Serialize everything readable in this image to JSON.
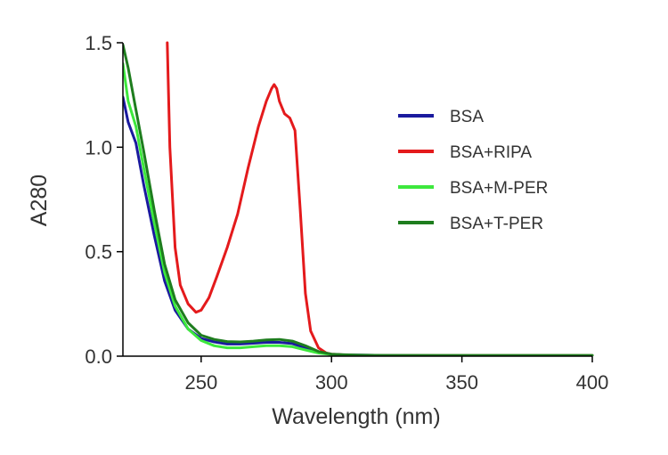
{
  "chart_data": {
    "type": "line",
    "xlabel": "Wavelength (nm)",
    "ylabel": "A280",
    "xlim": [
      220,
      400
    ],
    "ylim": [
      0,
      1.5
    ],
    "x_ticks": [
      250,
      300,
      350,
      400
    ],
    "x_tick_labels": [
      "250",
      "300",
      "350",
      "400"
    ],
    "y_ticks": [
      0,
      0.5,
      1.0,
      1.5
    ],
    "y_tick_labels": [
      "0.0",
      "0.5",
      "1.0",
      "1.5"
    ],
    "grid": false,
    "legend_position": "right",
    "series": [
      {
        "name": "BSA",
        "color": "#1a1a9e",
        "x": [
          220,
          222,
          225,
          228,
          232,
          236,
          240,
          245,
          250,
          255,
          260,
          265,
          270,
          275,
          280,
          285,
          290,
          295,
          300,
          305,
          310,
          320,
          340,
          360,
          380,
          400
        ],
        "y": [
          1.24,
          1.12,
          1.02,
          0.82,
          0.58,
          0.36,
          0.22,
          0.13,
          0.085,
          0.068,
          0.058,
          0.058,
          0.062,
          0.066,
          0.066,
          0.06,
          0.04,
          0.018,
          0.008,
          0.006,
          0.005,
          0.004,
          0.003,
          0.003,
          0.003,
          0.003
        ]
      },
      {
        "name": "BSA+RIPA",
        "color": "#e41a1c",
        "x": [
          237,
          238,
          240,
          242,
          245,
          248,
          250,
          253,
          256,
          260,
          264,
          268,
          272,
          275,
          277,
          278,
          279,
          280,
          282,
          284,
          286,
          288,
          290,
          292,
          295,
          298,
          300,
          305,
          310,
          320,
          340,
          360,
          380,
          400
        ],
        "y": [
          1.5,
          1.0,
          0.52,
          0.34,
          0.25,
          0.21,
          0.22,
          0.28,
          0.38,
          0.52,
          0.68,
          0.9,
          1.1,
          1.22,
          1.28,
          1.3,
          1.28,
          1.22,
          1.16,
          1.14,
          1.08,
          0.7,
          0.3,
          0.12,
          0.04,
          0.015,
          0.01,
          0.006,
          0.004,
          0.003,
          0.003,
          0.003,
          0.003,
          0.003
        ]
      },
      {
        "name": "BSA+M-PER",
        "color": "#3de83d",
        "x": [
          220,
          222,
          225,
          228,
          232,
          236,
          240,
          245,
          250,
          255,
          260,
          265,
          270,
          275,
          280,
          285,
          290,
          295,
          300,
          305,
          310,
          320,
          340,
          360,
          380,
          400
        ],
        "y": [
          1.4,
          1.22,
          1.1,
          0.9,
          0.64,
          0.4,
          0.24,
          0.13,
          0.075,
          0.05,
          0.04,
          0.04,
          0.045,
          0.05,
          0.05,
          0.045,
          0.03,
          0.015,
          0.008,
          0.005,
          0.004,
          0.003,
          0.003,
          0.003,
          0.003,
          0.003
        ]
      },
      {
        "name": "BSA+T-PER",
        "color": "#1e7d1e",
        "x": [
          220,
          222,
          225,
          228,
          232,
          236,
          240,
          245,
          250,
          255,
          260,
          265,
          270,
          275,
          280,
          285,
          290,
          295,
          300,
          305,
          310,
          320,
          340,
          360,
          380,
          400
        ],
        "y": [
          1.49,
          1.38,
          1.18,
          0.98,
          0.7,
          0.44,
          0.27,
          0.16,
          0.1,
          0.08,
          0.07,
          0.068,
          0.072,
          0.078,
          0.08,
          0.072,
          0.05,
          0.022,
          0.01,
          0.007,
          0.005,
          0.004,
          0.003,
          0.003,
          0.003,
          0.003
        ]
      }
    ]
  }
}
